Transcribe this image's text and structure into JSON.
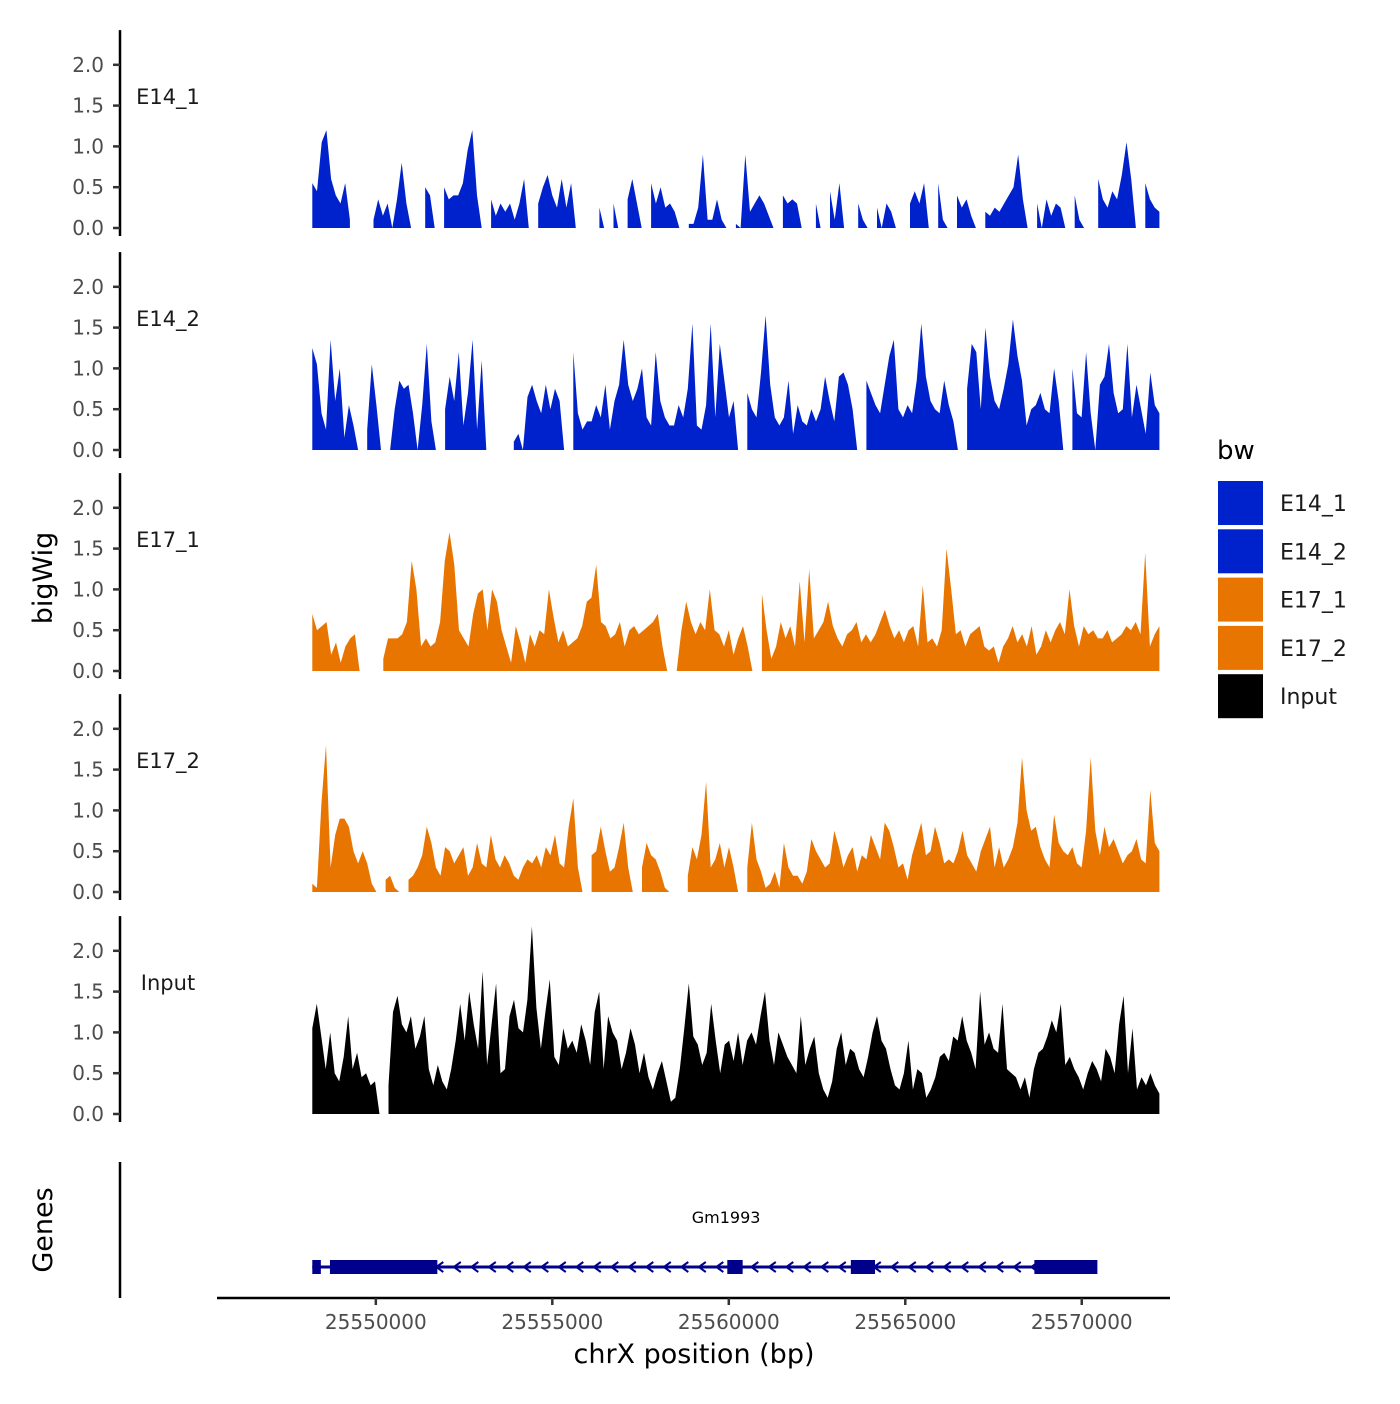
{
  "chart_data": {
    "type": "area",
    "title": "",
    "xlabel": "chrX position (bp)",
    "ylabel": "bigWig",
    "xlim": [
      25545500,
      25572500
    ],
    "ylim": [
      0,
      2.4
    ],
    "x_ticks": [
      25550000,
      25555000,
      25560000,
      25565000,
      25570000
    ],
    "x_tick_labels": [
      "25550000",
      "25555000",
      "25560000",
      "25565000",
      "25570000"
    ],
    "y_ticks": [
      0,
      0.5,
      1,
      1.5,
      2
    ],
    "y_tick_labels": [
      "0.0",
      "0.5",
      "1.0",
      "1.5",
      "2.0"
    ],
    "legend": {
      "title": "bw",
      "position": "right"
    },
    "series": [
      {
        "name": "E14_1",
        "color": "#0022CC",
        "x0": 25548200,
        "x1": 25572200,
        "values": [
          0.55,
          0.45,
          1.05,
          1.2,
          0.6,
          0.4,
          0.3,
          0.55,
          0.1,
          null,
          null,
          null,
          null,
          0.1,
          0.35,
          0.15,
          0.3,
          0,
          0.35,
          0.8,
          0.3,
          0,
          null,
          null,
          0.5,
          0.4,
          0,
          null,
          0.5,
          0.35,
          0.4,
          0.4,
          0.55,
          0.95,
          1.2,
          0.4,
          0,
          null,
          0.35,
          0.15,
          0.3,
          0.2,
          0.3,
          0.1,
          0.3,
          0.6,
          0,
          null,
          0.3,
          0.5,
          0.65,
          0.4,
          0.25,
          0.6,
          0.25,
          0.55,
          0,
          null,
          null,
          null,
          null,
          0.25,
          0,
          null,
          0.3,
          0,
          null,
          0.35,
          0.6,
          0.3,
          0,
          null,
          0.55,
          0.3,
          0.5,
          0.25,
          0.3,
          0.2,
          0,
          null,
          0.05,
          0.05,
          0.25,
          0.9,
          0.1,
          0.1,
          0.35,
          0.1,
          0,
          null,
          0.05,
          0,
          0.9,
          0.2,
          0.3,
          0.4,
          0.3,
          0.15,
          0,
          null,
          0.4,
          0.3,
          0.35,
          0.3,
          0,
          null,
          null,
          0.3,
          0,
          null,
          0.45,
          0.1,
          0.55,
          0,
          null,
          null,
          0.3,
          0.1,
          0,
          null,
          0.25,
          0,
          0.3,
          0.2,
          0,
          null,
          null,
          0.3,
          0.45,
          0.3,
          0.55,
          0,
          null,
          0.55,
          0.1,
          0,
          null,
          0.4,
          0.25,
          0.35,
          0.15,
          0,
          null,
          0.2,
          0.15,
          0.25,
          0.2,
          0.3,
          0.4,
          0.5,
          0.9,
          0.35,
          0,
          null,
          0.3,
          0,
          0.35,
          0.15,
          0.3,
          0.25,
          0,
          null,
          0.4,
          0.1,
          0,
          null,
          null,
          0.6,
          0.35,
          0.25,
          0.45,
          0.35,
          0.65,
          1.05,
          0.6,
          0,
          null,
          0.55,
          0.35,
          0.25,
          0.2
        ]
      },
      {
        "name": "E14_2",
        "color": "#0022CC",
        "x0": 25548200,
        "x1": 25572200,
        "values": [
          1.25,
          1.05,
          0.45,
          0.25,
          1.35,
          0.6,
          1.0,
          0.15,
          0.55,
          0.3,
          0,
          null,
          0.25,
          1.05,
          0.55,
          0,
          null,
          0,
          0.5,
          0.85,
          0.75,
          0.8,
          0.45,
          0,
          0.55,
          1.3,
          0.35,
          0,
          null,
          0.5,
          0.9,
          0.6,
          1.2,
          0.3,
          0.7,
          1.35,
          0.25,
          1.1,
          0,
          null,
          null,
          null,
          null,
          null,
          0.1,
          0.2,
          0,
          0.65,
          0.8,
          0.6,
          0.45,
          0.8,
          0.5,
          0.75,
          0.6,
          0,
          null,
          1.2,
          0.45,
          0.25,
          0.35,
          0.35,
          0.55,
          0.4,
          0.8,
          0.25,
          0.6,
          0.8,
          1.35,
          0.8,
          0.6,
          0.75,
          1.0,
          0.4,
          0.3,
          1.2,
          0.6,
          0.4,
          0.3,
          0.3,
          0.55,
          0.4,
          0.75,
          1.55,
          0.3,
          0.25,
          0.55,
          1.55,
          0.4,
          1.3,
          0.85,
          0.4,
          0.6,
          0,
          null,
          0.7,
          0.5,
          0.4,
          0.95,
          1.65,
          0.8,
          0.4,
          0.3,
          0.4,
          0.85,
          0.2,
          0.55,
          0.35,
          0.3,
          0.5,
          0.35,
          0.5,
          0.9,
          0.6,
          0.35,
          0.9,
          0.95,
          0.8,
          0.5,
          0,
          null,
          0.85,
          0.7,
          0.55,
          0.45,
          0.8,
          1.15,
          1.35,
          0.5,
          0.4,
          0.55,
          0.45,
          0.85,
          1.55,
          0.9,
          0.6,
          0.5,
          0.45,
          0.85,
          0.55,
          0.35,
          0,
          null,
          0.75,
          1.3,
          1.2,
          0.5,
          1.5,
          0.9,
          0.6,
          0.5,
          0.75,
          1.05,
          1.6,
          1.15,
          0.85,
          0.3,
          0.5,
          0.55,
          0.7,
          0.5,
          0.45,
          1.0,
          0.6,
          0,
          null,
          1.0,
          0.45,
          0.4,
          1.2,
          0.45,
          0,
          0.8,
          0.9,
          1.3,
          0.7,
          0.45,
          0.5,
          1.3,
          0.4,
          0.8,
          0.5,
          0.2,
          0.95,
          0.55,
          0.45
        ]
      },
      {
        "name": "E17_1",
        "color": "#E87500",
        "x0": 25548200,
        "x1": 25572200,
        "values": [
          0.7,
          0.5,
          0.55,
          0.6,
          0.2,
          0.35,
          0.1,
          0.3,
          0.4,
          0.45,
          0,
          null,
          null,
          null,
          null,
          0.15,
          0.4,
          0.4,
          0.4,
          0.45,
          0.6,
          1.35,
          1.0,
          0.3,
          0.4,
          0.3,
          0.35,
          0.6,
          1.35,
          1.7,
          1.3,
          0.5,
          0.4,
          0.3,
          0.7,
          0.95,
          1.0,
          0.5,
          1.0,
          0.85,
          0.5,
          0.3,
          0.1,
          0.55,
          0.35,
          0.1,
          0.45,
          0.3,
          0.5,
          0.45,
          1.0,
          0.65,
          0.35,
          0.5,
          0.3,
          0.35,
          0.4,
          0.55,
          0.85,
          0.9,
          1.3,
          0.6,
          0.55,
          0.4,
          0.45,
          0.6,
          0.3,
          0.5,
          0.55,
          0.45,
          0.5,
          0.55,
          0.6,
          0.7,
          0.3,
          0,
          null,
          0,
          0.5,
          0.85,
          0.6,
          0.45,
          0.6,
          0.5,
          1.0,
          0.5,
          0.45,
          0.3,
          0.5,
          0.2,
          0.4,
          0.55,
          0.3,
          0,
          null,
          0.95,
          0.5,
          0.15,
          0.3,
          0.6,
          0.4,
          0.55,
          0.3,
          1.1,
          0.35,
          1.25,
          0.4,
          0.5,
          0.6,
          0.85,
          0.55,
          0.4,
          0.3,
          0.45,
          0.5,
          0.6,
          0.35,
          0.45,
          0.35,
          0.45,
          0.6,
          0.75,
          0.55,
          0.4,
          0.5,
          0.35,
          0.5,
          0.55,
          0.3,
          1.05,
          0.35,
          0.4,
          0.3,
          0.5,
          1.5,
          1.0,
          0.45,
          0.5,
          0.3,
          0.45,
          0.5,
          0.55,
          0.3,
          0.25,
          0.3,
          0.1,
          0.3,
          0.4,
          0.55,
          0.35,
          0.45,
          0.3,
          0.55,
          0.2,
          0.3,
          0.5,
          0.35,
          0.5,
          0.6,
          0.45,
          1.0,
          0.55,
          0.3,
          0.55,
          0.45,
          0.5,
          0.4,
          0.4,
          0.5,
          0.35,
          0.4,
          0.45,
          0.55,
          0.5,
          0.6,
          0.45,
          1.45,
          0.3,
          0.45,
          0.55
        ]
      },
      {
        "name": "E17_2",
        "color": "#E87500",
        "x0": 25548200,
        "x1": 25572200,
        "values": [
          0.1,
          0.05,
          1.1,
          1.8,
          0.3,
          0.7,
          0.9,
          0.9,
          0.8,
          0.5,
          0.35,
          0.5,
          0.35,
          0.1,
          0,
          null,
          0.15,
          0.2,
          0.05,
          0,
          null,
          0.15,
          0.2,
          0.3,
          0.45,
          0.8,
          0.6,
          0.3,
          0.2,
          0.55,
          0.5,
          0.35,
          0.45,
          0.55,
          0.2,
          0.3,
          0.6,
          0.35,
          0.3,
          0.7,
          0.4,
          0.3,
          0.45,
          0.35,
          0.2,
          0.15,
          0.3,
          0.4,
          0.35,
          0.45,
          0.3,
          0.55,
          0.45,
          0.7,
          0.35,
          0.3,
          0.8,
          1.15,
          0.3,
          0,
          null,
          0.45,
          0.5,
          0.8,
          0.5,
          0.25,
          0.3,
          0.55,
          0.85,
          0.3,
          0,
          null,
          0.3,
          0.6,
          0.45,
          0.4,
          0.25,
          0.05,
          0,
          null,
          null,
          null,
          0.2,
          0.55,
          0.4,
          0.7,
          1.35,
          0.3,
          0.4,
          0.6,
          0.3,
          0.55,
          0.3,
          0,
          null,
          0.3,
          0.85,
          0.4,
          0.25,
          0.05,
          0.1,
          0.25,
          0.05,
          0.6,
          0.3,
          0.2,
          0.2,
          0.1,
          0.25,
          0.65,
          0.5,
          0.4,
          0.3,
          0.35,
          0.75,
          0.55,
          0.3,
          0.45,
          0.55,
          0.25,
          0.45,
          0.4,
          0.7,
          0.55,
          0.4,
          0.85,
          0.75,
          0.55,
          0.3,
          0.35,
          0.15,
          0.45,
          0.65,
          0.85,
          0.45,
          0.5,
          0.8,
          0.6,
          0.35,
          0.4,
          0.35,
          0.5,
          0.75,
          0.45,
          0.35,
          0.25,
          0.5,
          0.65,
          0.8,
          0.3,
          0.55,
          0.3,
          0.4,
          0.55,
          0.85,
          1.65,
          1.0,
          0.75,
          0.8,
          0.55,
          0.4,
          0.3,
          0.95,
          0.6,
          0.5,
          0.45,
          0.55,
          0.35,
          0.3,
          0.75,
          1.65,
          0.75,
          0.45,
          0.8,
          0.55,
          0.65,
          0.5,
          0.35,
          0.45,
          0.5,
          0.65,
          0.4,
          0.35,
          1.25,
          0.6,
          0.5
        ]
      },
      {
        "name": "Input",
        "color": "#000000",
        "x0": 25548200,
        "x1": 25572200,
        "values": [
          1.05,
          1.35,
          0.95,
          0.55,
          1.0,
          0.5,
          0.4,
          0.7,
          1.2,
          0.55,
          0.75,
          0.45,
          0.5,
          0.35,
          0.4,
          0,
          null,
          0.35,
          1.25,
          1.45,
          1.1,
          1.0,
          1.2,
          0.8,
          0.95,
          1.2,
          0.55,
          0.35,
          0.6,
          0.4,
          0.3,
          0.55,
          0.9,
          1.35,
          0.9,
          1.5,
          1.1,
          0.8,
          1.75,
          0.6,
          1.1,
          1.6,
          0.5,
          0.55,
          1.2,
          1.4,
          1.05,
          1.0,
          1.4,
          2.3,
          1.3,
          0.8,
          1.25,
          1.65,
          0.7,
          0.6,
          1.05,
          0.8,
          0.9,
          0.75,
          1.1,
          0.9,
          0.6,
          1.25,
          1.5,
          0.55,
          1.2,
          1.0,
          0.9,
          0.55,
          0.75,
          1.05,
          0.85,
          0.5,
          0.75,
          0.45,
          0.3,
          0.5,
          0.65,
          0.4,
          0.15,
          0.2,
          0.55,
          1.05,
          1.6,
          0.95,
          0.85,
          0.6,
          0.75,
          1.35,
          0.9,
          0.5,
          0.85,
          0.9,
          0.65,
          1.0,
          0.6,
          0.9,
          1.0,
          0.85,
          1.2,
          1.5,
          0.9,
          0.6,
          1.0,
          0.85,
          0.7,
          0.6,
          0.5,
          1.2,
          0.6,
          0.8,
          0.95,
          0.5,
          0.3,
          0.2,
          0.4,
          0.8,
          1.0,
          0.6,
          0.8,
          0.75,
          0.55,
          0.45,
          0.7,
          1.0,
          1.2,
          0.9,
          0.8,
          0.55,
          0.35,
          0.3,
          0.5,
          0.9,
          0.3,
          0.55,
          0.5,
          0.2,
          0.3,
          0.45,
          0.7,
          0.75,
          0.65,
          0.95,
          0.9,
          1.2,
          0.9,
          0.75,
          0.55,
          1.5,
          0.85,
          1.0,
          0.8,
          0.75,
          1.35,
          0.55,
          0.5,
          0.45,
          0.3,
          0.45,
          0.2,
          0.55,
          0.75,
          0.8,
          0.95,
          1.15,
          1.0,
          1.35,
          0.6,
          0.7,
          0.55,
          0.45,
          0.3,
          0.5,
          0.65,
          0.55,
          0.4,
          0.8,
          0.7,
          0.5,
          1.1,
          1.45,
          0.5,
          1.05,
          0.3,
          0.45,
          0.35,
          0.5,
          0.35,
          0.25
        ]
      }
    ]
  },
  "genes": {
    "label": "Genes",
    "items": [
      {
        "name": "Gm1993",
        "start": 25548200,
        "end": 25570400,
        "strand": "-",
        "exons": [
          25548200,
          25548400,
          25548700,
          25551700,
          25560000,
          25560350,
          25563500,
          25564100,
          25568700,
          25570400
        ]
      }
    ]
  }
}
